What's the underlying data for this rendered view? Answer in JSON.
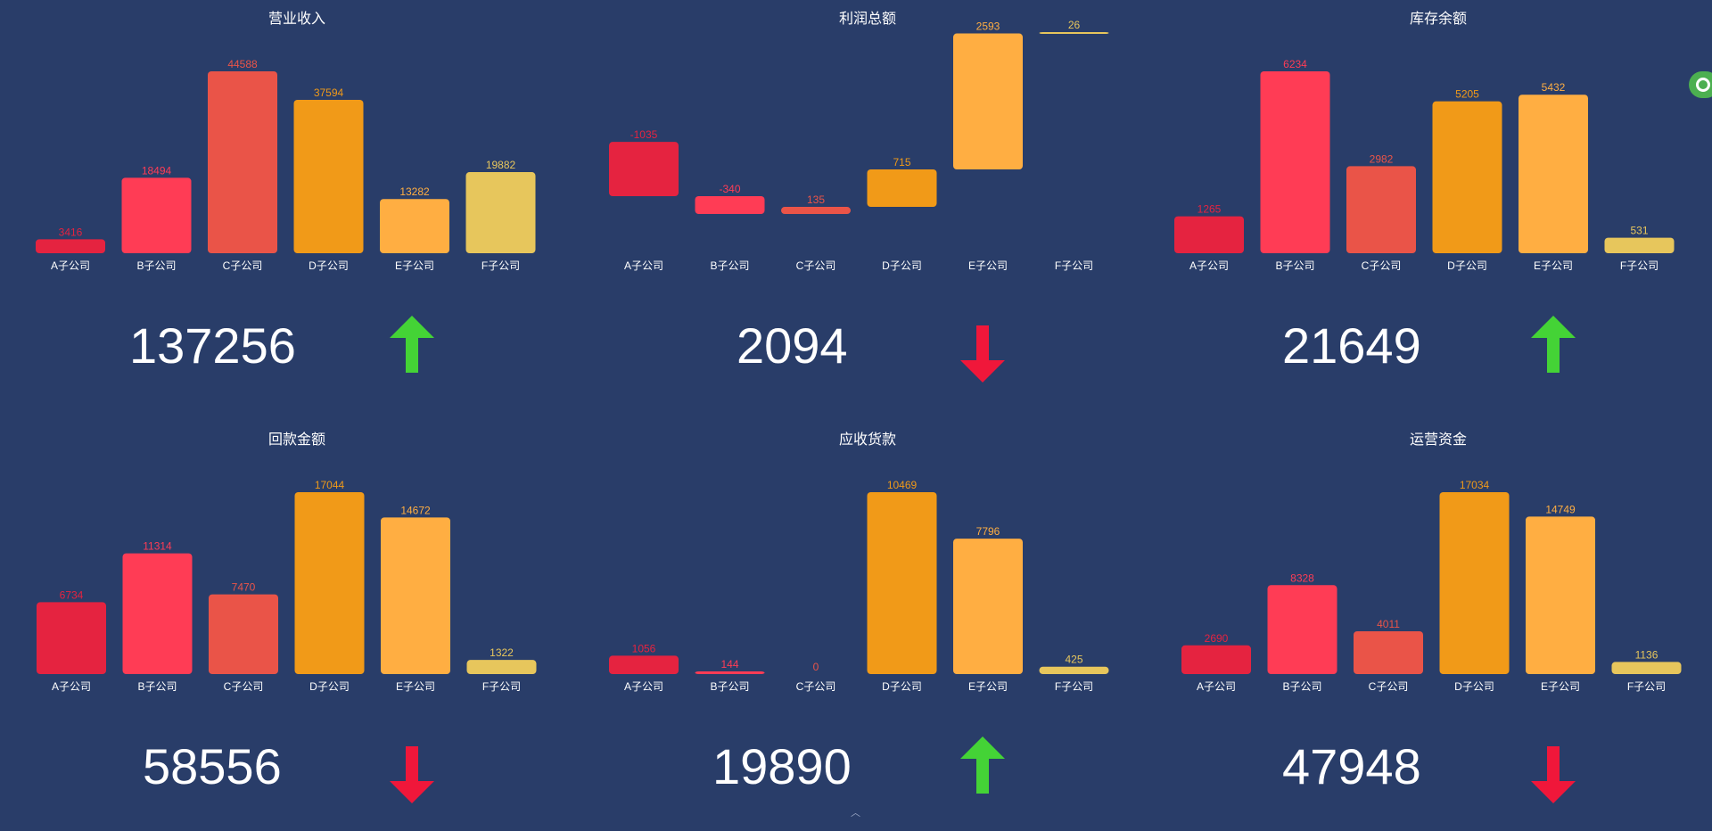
{
  "colors": {
    "background": "#293d69",
    "bars": [
      "#e52340",
      "#ff3c55",
      "#ea5448",
      "#f19a18",
      "#ffae42",
      "#e7c65c"
    ],
    "up_arrow": "#44d336",
    "down_arrow": "#f0173a"
  },
  "chart_data": [
    {
      "type": "bar",
      "title": "营业收入",
      "categories": [
        "A子公司",
        "B子公司",
        "C子公司",
        "D子公司",
        "E子公司",
        "F子公司"
      ],
      "values": [
        3416,
        18494,
        44588,
        37594,
        13282,
        19882
      ],
      "total": "137256",
      "trend": "up"
    },
    {
      "type": "bar",
      "title": "利润总额",
      "categories": [
        "A子公司",
        "B子公司",
        "C子公司",
        "D子公司",
        "E子公司",
        "F子公司"
      ],
      "values": [
        -1035,
        -340,
        135,
        715,
        2593,
        26
      ],
      "base_step": [
        0,
        -1035,
        -1375,
        -1240,
        -525,
        2068
      ],
      "total": "2094",
      "trend": "down"
    },
    {
      "type": "bar",
      "title": "库存余额",
      "categories": [
        "A子公司",
        "B子公司",
        "C子公司",
        "D子公司",
        "E子公司",
        "F子公司"
      ],
      "values": [
        1265,
        6234,
        2982,
        5205,
        5432,
        531
      ],
      "total": "21649",
      "trend": "up"
    },
    {
      "type": "bar",
      "title": "回款金额",
      "categories": [
        "A子公司",
        "B子公司",
        "C子公司",
        "D子公司",
        "E子公司",
        "F子公司"
      ],
      "values": [
        6734,
        11314,
        7470,
        17044,
        14672,
        1322
      ],
      "total": "58556",
      "trend": "down"
    },
    {
      "type": "bar",
      "title": "应收货款",
      "categories": [
        "A子公司",
        "B子公司",
        "C子公司",
        "D子公司",
        "E子公司",
        "F子公司"
      ],
      "values": [
        1056,
        144,
        0,
        10469,
        7796,
        425
      ],
      "total": "19890",
      "trend": "up"
    },
    {
      "type": "bar",
      "title": "运营资金",
      "categories": [
        "A子公司",
        "B子公司",
        "C子公司",
        "D子公司",
        "E子公司",
        "F子公司"
      ],
      "values": [
        2690,
        8328,
        4011,
        17034,
        14749,
        1136
      ],
      "total": "47948",
      "trend": "down"
    }
  ]
}
